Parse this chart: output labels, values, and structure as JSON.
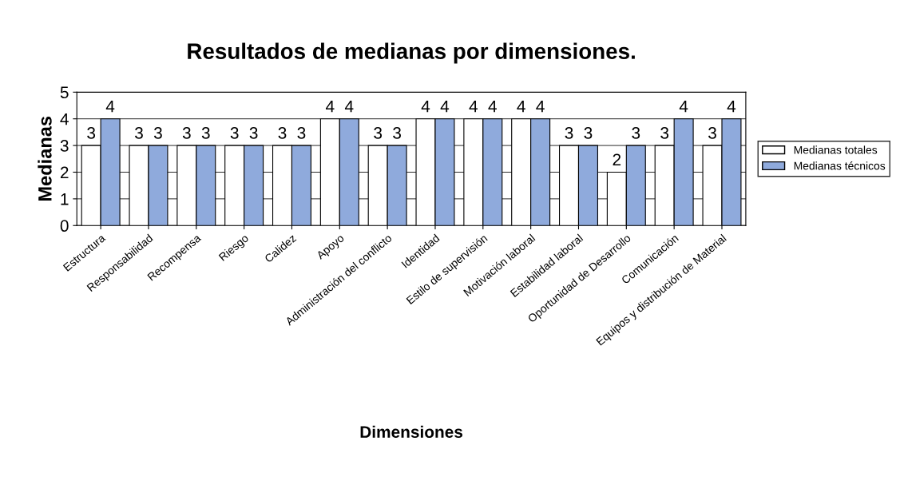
{
  "chart_data": {
    "type": "bar",
    "title": "Resultados de medianas por dimensiones.",
    "xlabel": "Dimensiones",
    "ylabel": "Medianas",
    "categories": [
      "Estructura",
      "Responsabilidad",
      "Recompensa",
      "Riesgo",
      "Calidez",
      "Apoyo",
      "Administración del conflicto",
      "Identidad",
      "Estilo de supervisión",
      "Motivación laboral",
      "Estabilidad laboral",
      "Oportunidad de Desarrollo",
      "Comunicación",
      "Equipos y distribución de Material"
    ],
    "series": [
      {
        "name": "Medianas totales",
        "color": "#ffffff",
        "values": [
          3,
          3,
          3,
          3,
          3,
          4,
          3,
          4,
          4,
          4,
          3,
          2,
          3,
          3
        ]
      },
      {
        "name": "Medianas técnicos",
        "color": "#8faadc",
        "values": [
          4,
          3,
          3,
          3,
          3,
          4,
          3,
          4,
          4,
          4,
          3,
          3,
          4,
          4
        ]
      }
    ],
    "ylim": [
      0,
      5
    ],
    "yticks": [
      0,
      1,
      2,
      3,
      4,
      5
    ],
    "grid": "y",
    "legend": "right",
    "data_labels": true
  }
}
